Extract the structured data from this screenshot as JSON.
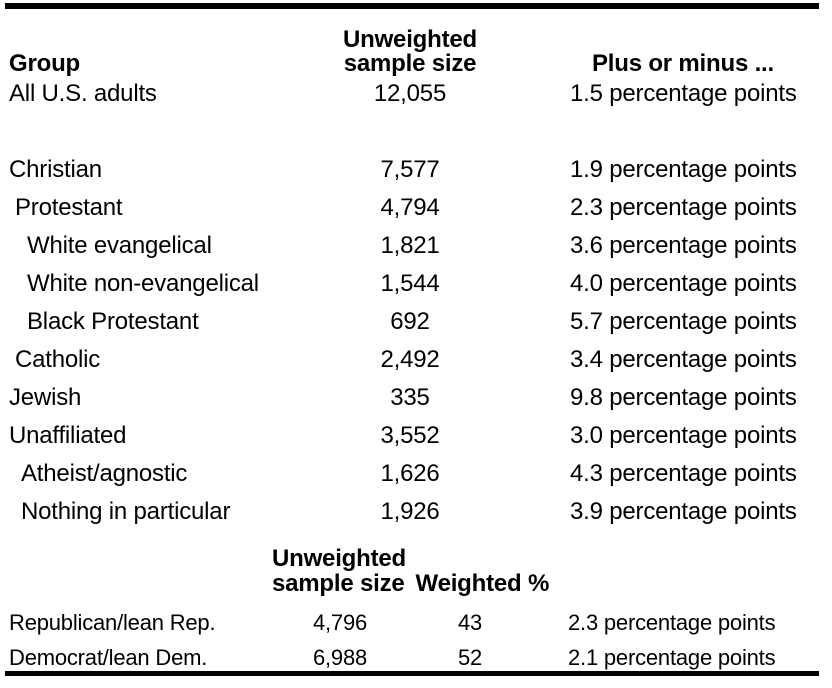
{
  "chart_data": {
    "type": "table",
    "sections": [
      {
        "columns": [
          "Group",
          "Unweighted sample size",
          "Plus or minus ..."
        ],
        "rows": [
          [
            "All U.S. adults",
            "12,055",
            "1.5 percentage points"
          ],
          [
            "Christian",
            "7,577",
            "1.9 percentage points"
          ],
          [
            "Protestant",
            "4,794",
            "2.3 percentage points"
          ],
          [
            "White evangelical",
            "1,821",
            "3.6 percentage points"
          ],
          [
            "White non-evangelical",
            "1,544",
            "4.0 percentage points"
          ],
          [
            "Black Protestant",
            "692",
            "5.7 percentage points"
          ],
          [
            "Catholic",
            "2,492",
            "3.4 percentage points"
          ],
          [
            "Jewish",
            "335",
            "9.8 percentage points"
          ],
          [
            "Unaffiliated",
            "3,552",
            "3.0 percentage points"
          ],
          [
            "Atheist/agnostic",
            "1,626",
            "4.3 percentage points"
          ],
          [
            "Nothing in particular",
            "1,926",
            "3.9 percentage points"
          ]
        ]
      },
      {
        "columns": [
          "Group",
          "Unweighted sample size",
          "Weighted %",
          "Plus or minus ..."
        ],
        "rows": [
          [
            "Republican/lean Rep.",
            "4,796",
            "43",
            "2.3 percentage points"
          ],
          [
            "Democrat/lean Dem.",
            "6,988",
            "52",
            "2.1 percentage points"
          ]
        ]
      }
    ],
    "colors": {
      "text": "#000000",
      "rule": "#000000",
      "background": "#ffffff"
    }
  },
  "upper": {
    "header": {
      "group": "Group",
      "sample_l1": "Unweighted",
      "sample_l2": "sample size",
      "plus_minus": "Plus or minus ..."
    },
    "rows": [
      {
        "group": "All U.S. adults",
        "sample": "12,055",
        "margin": "1.5 percentage points"
      },
      {
        "group": "Christian",
        "sample": "7,577",
        "margin": "1.9 percentage points"
      },
      {
        "group": "Protestant",
        "sample": "4,794",
        "margin": "2.3 percentage points"
      },
      {
        "group": "White evangelical",
        "sample": "1,821",
        "margin": "3.6 percentage points"
      },
      {
        "group": "White non-evangelical",
        "sample": "1,544",
        "margin": "4.0 percentage points"
      },
      {
        "group": "Black Protestant",
        "sample": "692",
        "margin": "5.7 percentage points"
      },
      {
        "group": "Catholic",
        "sample": "2,492",
        "margin": "3.4 percentage points"
      },
      {
        "group": "Jewish",
        "sample": "335",
        "margin": "9.8 percentage points"
      },
      {
        "group": "Unaffiliated",
        "sample": "3,552",
        "margin": "3.0 percentage points"
      },
      {
        "group": "Atheist/agnostic",
        "sample": "1,626",
        "margin": "4.3 percentage points"
      },
      {
        "group": "Nothing in particular",
        "sample": "1,926",
        "margin": "3.9 percentage points"
      }
    ]
  },
  "lower": {
    "header": {
      "l1": "Unweighted",
      "l2_sample": "sample size",
      "l2_weighted": "Weighted %"
    },
    "rows": [
      {
        "group": "Republican/lean Rep.",
        "sample": "4,796",
        "weighted": "43",
        "margin": "2.3 percentage points"
      },
      {
        "group": "Democrat/lean Dem.",
        "sample": "6,988",
        "weighted": "52",
        "margin": "2.1 percentage points"
      }
    ]
  }
}
